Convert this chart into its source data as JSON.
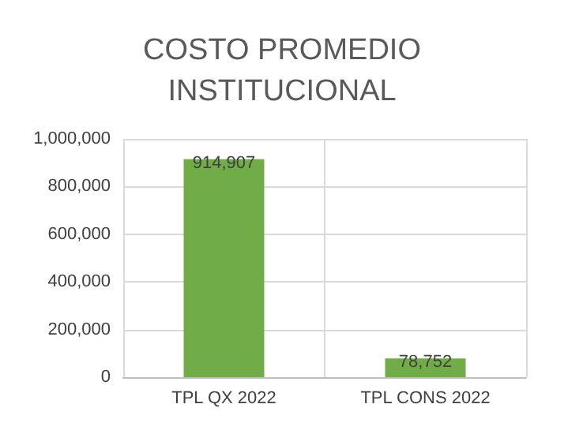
{
  "chart_data": {
    "type": "bar",
    "title": "COSTO PROMEDIO\nINSTITUCIONAL",
    "categories": [
      "TPL QX 2022",
      "TPL CONS 2022"
    ],
    "values": [
      914907,
      78752
    ],
    "color": "#70ad47",
    "value_labels": [
      "914,907",
      "78,752"
    ],
    "ylim": [
      0,
      1000000
    ],
    "yticks": [
      {
        "value": 0,
        "label": "0"
      },
      {
        "value": 200000,
        "label": "200,000"
      },
      {
        "value": 400000,
        "label": "400,000"
      },
      {
        "value": 600000,
        "label": "600,000"
      },
      {
        "value": 800000,
        "label": "800,000"
      },
      {
        "value": 1000000,
        "label": "1,000,000"
      }
    ],
    "grid": true
  }
}
